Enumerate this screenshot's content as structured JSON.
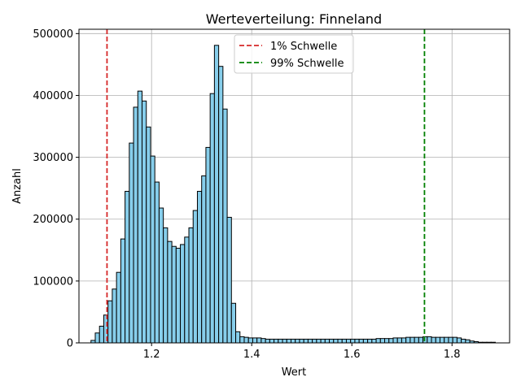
{
  "chart_data": {
    "type": "bar",
    "title": "Werteverteilung: Finneland",
    "xlabel": "Wert",
    "ylabel": "Anzahl",
    "xlim": [
      1.055,
      1.915
    ],
    "ylim": [
      0,
      507000
    ],
    "xticks": [
      "1.2",
      "1.4",
      "1.6",
      "1.8"
    ],
    "yticks": [
      "0",
      "100000",
      "200000",
      "300000",
      "400000",
      "500000"
    ],
    "grid": true,
    "legend_position": "top-center",
    "bar_color": "#87ceeb",
    "bar_edge_color": "#000000",
    "bin_start": 1.079,
    "bin_width": 0.0085,
    "values": [
      4000,
      16000,
      27000,
      45000,
      68000,
      87000,
      114000,
      168000,
      245000,
      323000,
      381000,
      407000,
      391000,
      349000,
      302000,
      260000,
      218000,
      186000,
      164000,
      156000,
      153000,
      159000,
      171000,
      186000,
      214000,
      245000,
      270000,
      316000,
      403000,
      481000,
      447000,
      378000,
      203000,
      64000,
      18000,
      10000,
      9000,
      8000,
      8000,
      8000,
      7000,
      6000,
      6000,
      6000,
      6000,
      6000,
      6000,
      6000,
      6000,
      6000,
      6000,
      6000,
      6000,
      6000,
      6000,
      6000,
      6000,
      6000,
      6000,
      6000,
      6000,
      6000,
      6000,
      6000,
      6000,
      6000,
      6000,
      7000,
      7000,
      7000,
      7000,
      8000,
      8000,
      8000,
      9000,
      9000,
      9000,
      9000,
      10000,
      10000,
      9000,
      9000,
      9000,
      9000,
      9000,
      9000,
      8000,
      6000,
      5000,
      3000,
      2000,
      1000,
      1000,
      1000,
      1000,
      0,
      0,
      0
    ],
    "lines": [
      {
        "name": "1% Schwelle",
        "x": 1.111,
        "color": "#d62728"
      },
      {
        "name": "99% Schwelle",
        "x": 1.745,
        "color": "#008000"
      }
    ]
  }
}
